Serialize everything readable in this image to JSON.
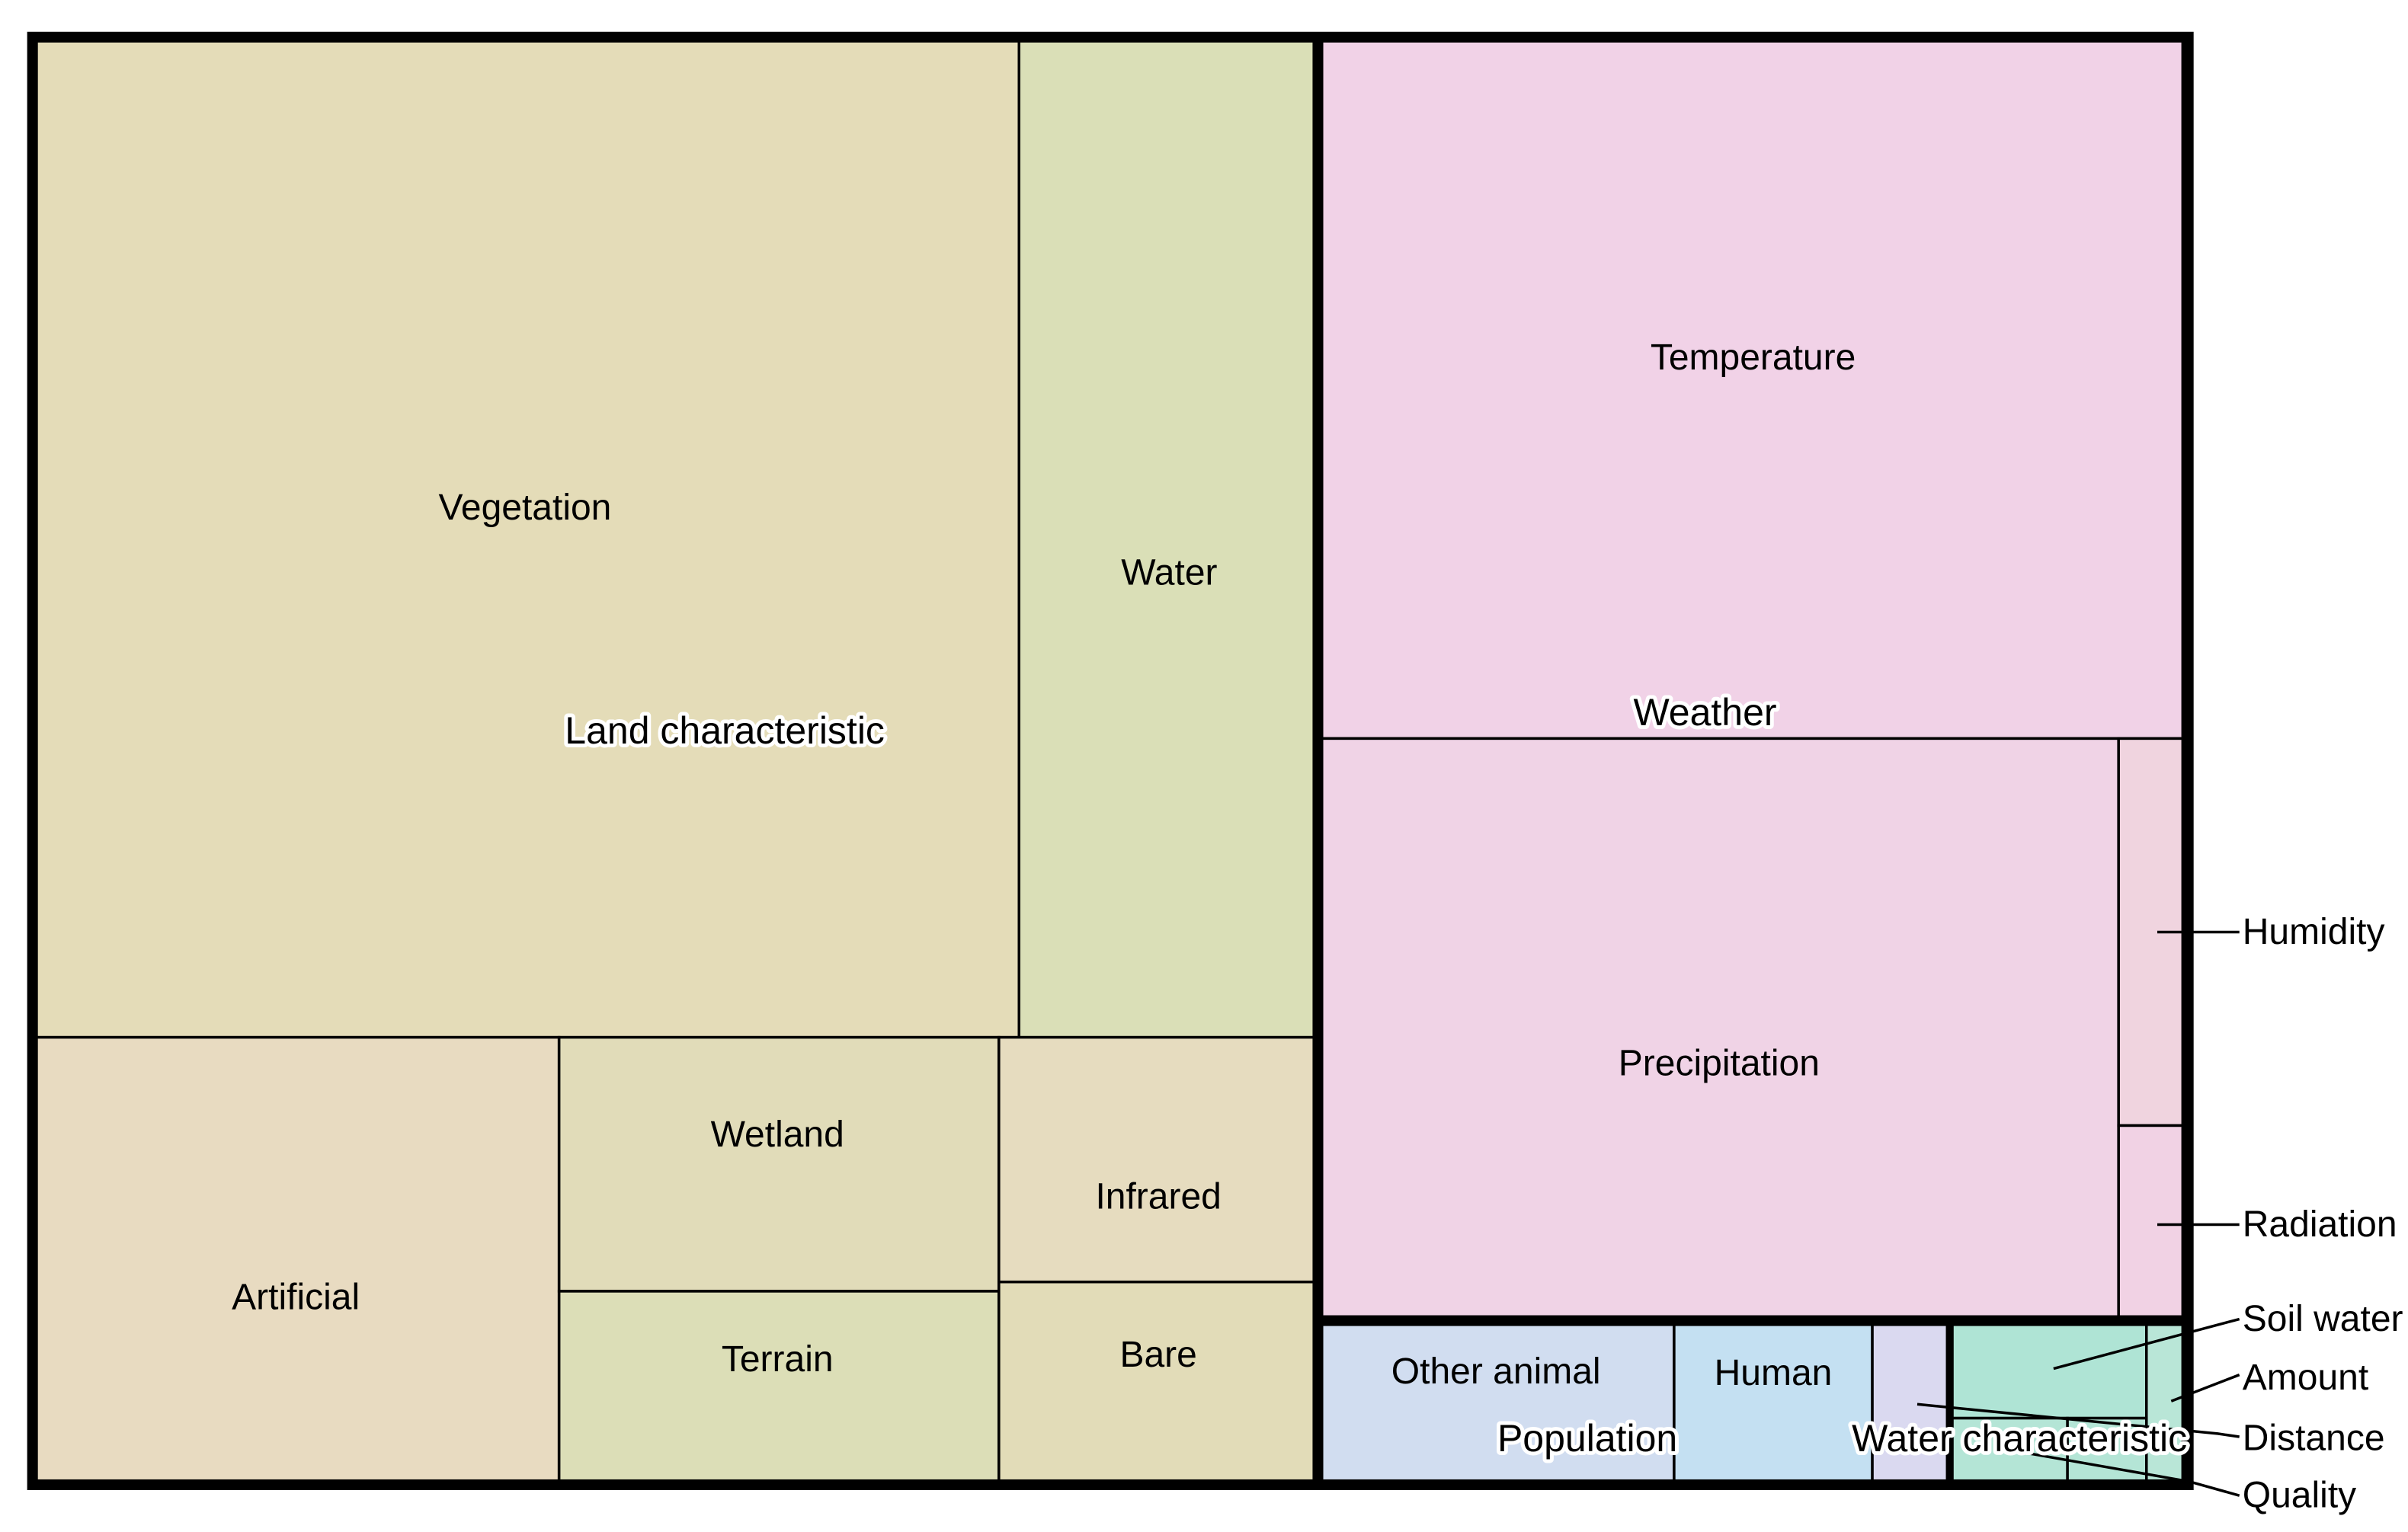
{
  "chart_data": {
    "type": "treemap",
    "groups": [
      {
        "name": "Land characteristic",
        "color": "#e5ddb8",
        "children": [
          {
            "name": "Vegetation",
            "color": "#e4dcb8"
          },
          {
            "name": "Water",
            "color": "#dadfb7"
          },
          {
            "name": "Artificial",
            "color": "#e8dbc1"
          },
          {
            "name": "Wetland",
            "color": "#e1dcb9"
          },
          {
            "name": "Terrain",
            "color": "#dcdeb7"
          },
          {
            "name": "Infrared",
            "color": "#e6dcbf"
          },
          {
            "name": "Bare",
            "color": "#e2dcb8"
          }
        ]
      },
      {
        "name": "Weather",
        "color": "#f1d2e6",
        "children": [
          {
            "name": "Temperature",
            "color": "#f1d2e7"
          },
          {
            "name": "Precipitation",
            "color": "#f0d3e6"
          },
          {
            "name": "Humidity",
            "color": "#f0d4df"
          },
          {
            "name": "Radiation",
            "color": "#f1d2e4"
          }
        ]
      },
      {
        "name": "Population",
        "color": "#d3dff0",
        "children": [
          {
            "name": "Other animal",
            "color": "#d1ddf0"
          },
          {
            "name": "Human",
            "color": "#c4e0f2"
          },
          {
            "name": "",
            "color": "#dad9f0"
          }
        ]
      },
      {
        "name": "Water characteristic",
        "color": "#b4e5d6",
        "children": [
          {
            "name": "Soil water",
            "color": "#afe4d5"
          },
          {
            "name": "Amount",
            "color": "#b9e6d7"
          },
          {
            "name": "Distance",
            "color": "#b4e5d6"
          },
          {
            "name": "Quality",
            "color": "#b4e5d6"
          }
        ]
      }
    ],
    "callouts": [
      "Humidity",
      "Radiation",
      "Soil water",
      "Amount",
      "Distance",
      "Quality"
    ]
  }
}
